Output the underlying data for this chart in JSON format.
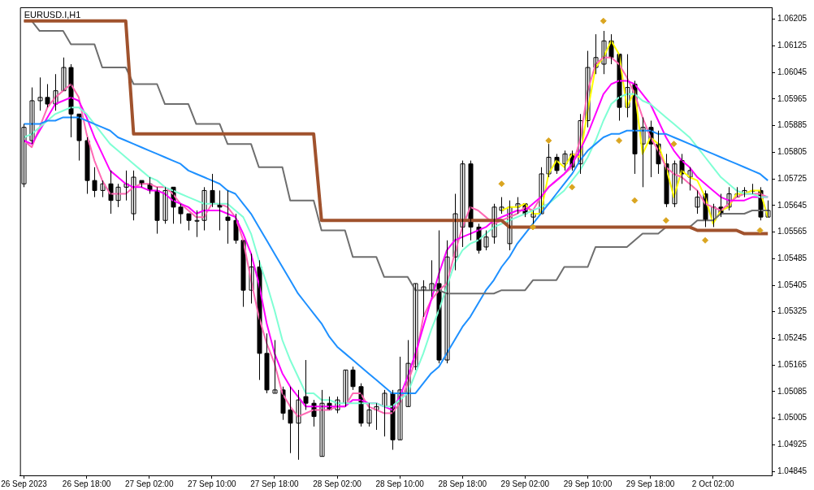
{
  "chart_data": {
    "type": "candlestick",
    "title": "EURUSD.I,H1",
    "categories": [
      "26 Sep 2023",
      null,
      null,
      null,
      null,
      null,
      null,
      null,
      "26 Sep 18:00",
      null,
      null,
      null,
      null,
      null,
      null,
      null,
      "27 Sep 02:00",
      null,
      null,
      null,
      null,
      null,
      null,
      null,
      "27 Sep 10:00",
      null,
      null,
      null,
      null,
      null,
      null,
      null,
      "27 Sep 18:00",
      null,
      null,
      null,
      null,
      null,
      null,
      null,
      "28 Sep 02:00",
      null,
      null,
      null,
      null,
      null,
      null,
      null,
      "28 Sep 10:00",
      null,
      null,
      null,
      null,
      null,
      null,
      null,
      "28 Sep 18:00",
      null,
      null,
      null,
      null,
      null,
      null,
      null,
      "29 Sep 02:00",
      null,
      null,
      null,
      null,
      null,
      null,
      null,
      "29 Sep 10:00",
      null,
      null,
      null,
      null,
      null,
      null,
      null,
      "29 Sep 18:00",
      null,
      null,
      null,
      null,
      null,
      null,
      null,
      "2 Oct 02:00",
      null,
      null,
      null,
      null,
      null,
      null,
      null
    ],
    "ohlc": [
      [
        1.0571,
        1.0589,
        1.057,
        1.0588
      ],
      [
        1.0584,
        1.06,
        1.0583,
        1.0596
      ],
      [
        1.0596,
        1.0603,
        1.0593,
        1.0597
      ],
      [
        1.0597,
        1.0601,
        1.0594,
        1.0595
      ],
      [
        1.0595,
        1.0604,
        1.0593,
        1.0599
      ],
      [
        1.0599,
        1.0609,
        1.0599,
        1.0606
      ],
      [
        1.0606,
        1.0607,
        1.0585,
        1.0592
      ],
      [
        1.0592,
        1.0592,
        1.0578,
        1.0584
      ],
      [
        1.0584,
        1.0585,
        1.0568,
        1.0572
      ],
      [
        1.0572,
        1.0576,
        1.0567,
        1.0569
      ],
      [
        1.0569,
        1.0572,
        1.0567,
        1.0571
      ],
      [
        1.0571,
        1.0575,
        1.0562,
        1.0566
      ],
      [
        1.0566,
        1.0571,
        1.0564,
        1.057
      ],
      [
        1.057,
        1.0575,
        1.0566,
        1.0571
      ],
      [
        1.0562,
        1.0575,
        1.056,
        1.0573
      ],
      [
        1.0572,
        1.0572,
        1.057,
        1.0571
      ],
      [
        1.0571,
        1.0573,
        1.0568,
        1.0569
      ],
      [
        1.0569,
        1.057,
        1.0556,
        1.056
      ],
      [
        1.056,
        1.057,
        1.0559,
        1.0569
      ],
      [
        1.057,
        1.057,
        1.0559,
        1.0564
      ],
      [
        1.0564,
        1.0565,
        1.0559,
        1.0562
      ],
      [
        1.0562,
        1.0562,
        1.0557,
        1.056
      ],
      [
        1.056,
        1.0563,
        1.0555,
        1.056
      ],
      [
        1.056,
        1.057,
        1.0557,
        1.0569
      ],
      [
        1.0569,
        1.0574,
        1.0564,
        1.0565
      ],
      [
        1.0565,
        1.0569,
        1.0557,
        1.0564
      ],
      [
        1.0561,
        1.0569,
        1.0553,
        1.056
      ],
      [
        1.056,
        1.0562,
        1.0553,
        1.0554
      ],
      [
        1.0554,
        1.0554,
        1.0534,
        1.0539
      ],
      [
        1.0539,
        1.055,
        1.0535,
        1.0546
      ],
      [
        1.0546,
        1.0548,
        1.0512,
        1.052
      ],
      [
        1.052,
        1.0526,
        1.0508,
        1.0509
      ],
      [
        1.0508,
        1.0524,
        1.0508,
        1.0509
      ],
      [
        1.0509,
        1.051,
        1.05,
        1.0502
      ],
      [
        1.0503,
        1.051,
        1.049,
        1.0499
      ],
      [
        1.0499,
        1.0509,
        1.0488,
        1.0506
      ],
      [
        1.0507,
        1.0518,
        1.0503,
        1.0505
      ],
      [
        1.0505,
        1.0506,
        1.0498,
        1.0501
      ],
      [
        1.0489,
        1.0509,
        1.0489,
        1.0505
      ],
      [
        1.0505,
        1.0507,
        1.0503,
        1.0503
      ],
      [
        1.0503,
        1.0507,
        1.0502,
        1.0506
      ],
      [
        1.0505,
        1.0515,
        1.0504,
        1.0515
      ],
      [
        1.0515,
        1.0516,
        1.0509,
        1.051
      ],
      [
        1.051,
        1.0511,
        1.0498,
        1.0499
      ],
      [
        1.0499,
        1.0505,
        1.0498,
        1.0503
      ],
      [
        1.0503,
        1.0505,
        1.0497,
        1.0504
      ],
      [
        1.0504,
        1.0509,
        1.0495,
        1.0508
      ],
      [
        1.0508,
        1.0509,
        1.0491,
        1.0494
      ],
      [
        1.0494,
        1.0519,
        1.0494,
        1.0509
      ],
      [
        1.0504,
        1.0524,
        1.0504,
        1.0517
      ],
      [
        1.0516,
        1.0541,
        1.0515,
        1.0541
      ],
      [
        1.0539,
        1.0542,
        1.0531,
        1.054
      ],
      [
        1.0539,
        1.0548,
        1.0537,
        1.0541
      ],
      [
        1.0541,
        1.0557,
        1.0517,
        1.0518
      ],
      [
        1.0518,
        1.0554,
        1.0517,
        1.0549
      ],
      [
        1.0549,
        1.0568,
        1.0545,
        1.0562
      ],
      [
        1.0558,
        1.0578,
        1.0552,
        1.0577
      ],
      [
        1.0577,
        1.0578,
        1.0554,
        1.0558
      ],
      [
        1.0558,
        1.0559,
        1.055,
        1.0551
      ],
      [
        1.0552,
        1.0557,
        1.0551,
        1.0555
      ],
      [
        1.0555,
        1.0565,
        1.0553,
        1.0564
      ],
      [
        1.0563,
        1.0567,
        1.0562,
        1.0564
      ],
      [
        1.0553,
        1.0566,
        1.0551,
        1.0564
      ],
      [
        1.0564,
        1.0567,
        1.0562,
        1.0565
      ],
      [
        1.0565,
        1.0565,
        1.0561,
        1.0562
      ],
      [
        1.0561,
        1.0563,
        1.0559,
        1.0562
      ],
      [
        1.0562,
        1.0576,
        1.0562,
        1.0574
      ],
      [
        1.0574,
        1.0583,
        1.0573,
        1.0579
      ],
      [
        1.0579,
        1.058,
        1.0574,
        1.0575
      ],
      [
        1.0577,
        1.0581,
        1.0575,
        1.058
      ],
      [
        1.058,
        1.0581,
        1.0575,
        1.0576
      ],
      [
        1.0577,
        1.0592,
        1.0574,
        1.059
      ],
      [
        1.059,
        1.0611,
        1.0588,
        1.0606
      ],
      [
        1.0606,
        1.0616,
        1.0604,
        1.0609
      ],
      [
        1.0607,
        1.0617,
        1.0604,
        1.0614
      ],
      [
        1.0614,
        1.0616,
        1.0607,
        1.0609
      ],
      [
        1.061,
        1.061,
        1.059,
        1.0594
      ],
      [
        1.0594,
        1.061,
        1.0591,
        1.06
      ],
      [
        1.0601,
        1.0602,
        1.0574,
        1.058
      ],
      [
        1.0583,
        1.0591,
        1.057,
        1.0588
      ],
      [
        1.0588,
        1.059,
        1.0573,
        1.0583
      ],
      [
        1.0583,
        1.0587,
        1.0574,
        1.0577
      ],
      [
        1.0577,
        1.058,
        1.0564,
        1.0565
      ],
      [
        1.0565,
        1.0578,
        1.0564,
        1.0577
      ],
      [
        1.0578,
        1.058,
        1.0571,
        1.0574
      ],
      [
        1.0573,
        1.0576,
        1.0569,
        1.0575
      ],
      [
        1.0564,
        1.0569,
        1.0562,
        1.0567
      ],
      [
        1.0568,
        1.0569,
        1.0558,
        1.056
      ],
      [
        1.056,
        1.0565,
        1.0558,
        1.0564
      ],
      [
        1.0564,
        1.0568,
        1.0561,
        1.0562
      ],
      [
        1.0564,
        1.057,
        1.0563,
        1.0568
      ],
      [
        1.0567,
        1.057,
        1.0567,
        1.0568
      ],
      [
        1.0568,
        1.057,
        1.0567,
        1.0569
      ],
      [
        1.0569,
        1.0571,
        1.0568,
        1.0569
      ],
      [
        1.0569,
        1.057,
        1.056,
        1.0561
      ],
      [
        1.0561,
        1.0566,
        1.0561,
        1.0563
      ]
    ],
    "ylim": [
      1.04833,
      1.06241
    ],
    "yticks": [
      1.04845,
      1.04925,
      1.05005,
      1.05085,
      1.05165,
      1.05245,
      1.05325,
      1.05405,
      1.05485,
      1.05565,
      1.05645,
      1.05725,
      1.05805,
      1.05885,
      1.05965,
      1.06045,
      1.06125,
      1.06205
    ],
    "series": [
      {
        "type": "line",
        "color": "#a0522d",
        "values": [
          1.062,
          1.062,
          1.062,
          1.062,
          1.062,
          1.062,
          1.062,
          1.062,
          1.062,
          1.062,
          1.062,
          1.062,
          1.062,
          1.062,
          1.0586,
          1.0586,
          1.0586,
          1.0586,
          1.0586,
          1.0586,
          1.0586,
          1.0586,
          1.0586,
          1.0586,
          1.0586,
          1.0586,
          1.0586,
          1.0586,
          1.0586,
          1.0586,
          1.0586,
          1.0586,
          1.0586,
          1.0586,
          1.0586,
          1.0586,
          1.0586,
          1.0586,
          1.056,
          1.056,
          1.056,
          1.056,
          1.056,
          1.056,
          1.056,
          1.056,
          1.056,
          1.056,
          1.056,
          1.056,
          1.056,
          1.056,
          1.056,
          1.056,
          1.056,
          1.056,
          1.056,
          1.056,
          1.056,
          1.056,
          1.056,
          1.056,
          1.0558,
          1.0558,
          1.0558,
          1.0558,
          1.0558,
          1.0558,
          1.0558,
          1.0558,
          1.0558,
          1.0558,
          1.0558,
          1.0558,
          1.0558,
          1.0558,
          1.0558,
          1.0558,
          1.0558,
          1.0558,
          1.0558,
          1.0558,
          1.0558,
          1.0558,
          1.0558,
          1.0558,
          1.0557,
          1.0557,
          1.0557,
          1.0557,
          1.0557,
          1.0557,
          1.0556,
          1.0556,
          1.0556,
          1.0556
        ]
      },
      {
        "type": "line",
        "color": "#6e6e6e",
        "values": [
          1.062,
          1.062,
          1.0617,
          1.0617,
          1.0617,
          1.0617,
          1.0613,
          1.0613,
          1.0613,
          1.0613,
          1.0606,
          1.0606,
          1.0606,
          1.0606,
          1.0601,
          1.0601,
          1.0601,
          1.0601,
          1.0595,
          1.0595,
          1.0595,
          1.0595,
          1.0589,
          1.0589,
          1.0589,
          1.0589,
          1.0583,
          1.0583,
          1.0583,
          1.0583,
          1.0576,
          1.0576,
          1.0576,
          1.0576,
          1.0566,
          1.0566,
          1.0566,
          1.0566,
          1.0557,
          1.0557,
          1.0557,
          1.0557,
          1.0549,
          1.0549,
          1.0549,
          1.0549,
          1.0543,
          1.0543,
          1.0543,
          1.0543,
          1.0539,
          1.0539,
          1.0539,
          1.0539,
          1.0538,
          1.0538,
          1.0538,
          1.0538,
          1.0538,
          1.0538,
          1.0538,
          1.0539,
          1.0539,
          1.0539,
          1.0539,
          1.0542,
          1.0542,
          1.0542,
          1.0542,
          1.0546,
          1.0546,
          1.0546,
          1.0546,
          1.0552,
          1.0552,
          1.0552,
          1.0552,
          1.0552,
          1.0554,
          1.0556,
          1.0556,
          1.0556,
          1.0558,
          1.0558,
          1.0558,
          1.0558,
          1.056,
          1.056,
          1.056,
          1.0562,
          1.0562,
          1.0562,
          1.0562,
          1.0563,
          1.0563,
          1.0563
        ]
      },
      {
        "type": "line",
        "color": "#1e90ff",
        "values": [
          1.0589,
          1.0589,
          1.0589,
          1.059,
          1.059,
          1.0591,
          1.0591,
          1.0591,
          1.059,
          1.0589,
          1.0588,
          1.0587,
          1.0585,
          1.0584,
          1.0583,
          1.0582,
          1.0581,
          1.058,
          1.0579,
          1.0578,
          1.0577,
          1.0575,
          1.0574,
          1.0573,
          1.0572,
          1.0571,
          1.0569,
          1.0568,
          1.0565,
          1.0562,
          1.0558,
          1.0554,
          1.055,
          1.0546,
          1.0542,
          1.0538,
          1.0535,
          1.0532,
          1.0529,
          1.0525,
          1.0522,
          1.052,
          1.0518,
          1.0516,
          1.0514,
          1.0512,
          1.051,
          1.0508,
          1.0508,
          1.0508,
          1.0508,
          1.0511,
          1.0514,
          1.0516,
          1.052,
          1.0524,
          1.0528,
          1.0531,
          1.0535,
          1.0539,
          1.0542,
          1.0546,
          1.0549,
          1.0553,
          1.0556,
          1.0559,
          1.0562,
          1.0565,
          1.0568,
          1.0571,
          1.0574,
          1.0578,
          1.0581,
          1.0583,
          1.0585,
          1.0586,
          1.0586,
          1.0587,
          1.0587,
          1.0587,
          1.0587,
          1.0586,
          1.0586,
          1.0585,
          1.0584,
          1.0583,
          1.0582,
          1.0581,
          1.058,
          1.0579,
          1.0578,
          1.0577,
          1.0576,
          1.0575,
          1.0574,
          1.0572
        ]
      },
      {
        "type": "line",
        "color": "#7fffd4",
        "values": [
          1.0585,
          1.0586,
          1.0588,
          1.059,
          1.0592,
          1.0593,
          1.0594,
          1.0594,
          1.0592,
          1.0589,
          1.0586,
          1.0583,
          1.0581,
          1.0579,
          1.0577,
          1.0575,
          1.0573,
          1.0572,
          1.057,
          1.0569,
          1.0568,
          1.0567,
          1.0566,
          1.0565,
          1.0565,
          1.0565,
          1.0565,
          1.0563,
          1.0561,
          1.0556,
          1.0548,
          1.0541,
          1.0533,
          1.0524,
          1.0518,
          1.0513,
          1.0508,
          1.0508,
          1.0506,
          1.0506,
          1.0505,
          1.0505,
          1.0505,
          1.0505,
          1.0505,
          1.0505,
          1.0504,
          1.0504,
          1.0506,
          1.0508,
          1.0514,
          1.052,
          1.0527,
          1.0533,
          1.054,
          1.0547,
          1.0551,
          1.0553,
          1.0554,
          1.0556,
          1.0558,
          1.0559,
          1.056,
          1.0561,
          1.0562,
          1.0563,
          1.0564,
          1.0565,
          1.0567,
          1.0569,
          1.0572,
          1.0575,
          1.0579,
          1.0584,
          1.059,
          1.0595,
          1.0597,
          1.0598,
          1.0598,
          1.0596,
          1.0595,
          1.0593,
          1.0591,
          1.0589,
          1.0587,
          1.0585,
          1.0582,
          1.0579,
          1.0576,
          1.0573,
          1.0571,
          1.0569,
          1.0568,
          1.0568,
          1.0567,
          1.0567
        ]
      },
      {
        "type": "line",
        "color": "#ff00ff",
        "values": [
          1.0584,
          1.0583,
          1.0587,
          1.0591,
          1.0595,
          1.0596,
          1.0597,
          1.0596,
          1.0591,
          1.0585,
          1.058,
          1.0575,
          1.0573,
          1.0571,
          1.057,
          1.057,
          1.0569,
          1.0569,
          1.0568,
          1.0566,
          1.0565,
          1.0564,
          1.0562,
          1.0563,
          1.0563,
          1.0563,
          1.0562,
          1.0561,
          1.0556,
          1.055,
          1.0541,
          1.0529,
          1.052,
          1.0514,
          1.051,
          1.0507,
          1.0504,
          1.0504,
          1.0504,
          1.0504,
          1.0504,
          1.0504,
          1.0506,
          1.0506,
          1.0505,
          1.0505,
          1.0504,
          1.0503,
          1.0507,
          1.0513,
          1.052,
          1.0528,
          1.0536,
          1.0544,
          1.0551,
          1.0554,
          1.0555,
          1.0556,
          1.0557,
          1.0558,
          1.056,
          1.0561,
          1.0562,
          1.0563,
          1.0563,
          1.0565,
          1.0567,
          1.057,
          1.0572,
          1.0574,
          1.0577,
          1.0581,
          1.0586,
          1.0592,
          1.0598,
          1.0601,
          1.0602,
          1.0602,
          1.0601,
          1.0598,
          1.0595,
          1.059,
          1.0585,
          1.0581,
          1.0578,
          1.0576,
          1.0573,
          1.0571,
          1.0569,
          1.0567,
          1.0566,
          1.0566,
          1.0566,
          1.0567,
          1.0567,
          1.0567
        ]
      },
      {
        "type": "line",
        "color": "#ff69b4",
        "values": [
          1.0584,
          1.0582,
          1.0588,
          1.0594,
          1.0597,
          1.0599,
          1.0601,
          1.0597,
          1.0586,
          1.0578,
          1.0572,
          1.0568,
          1.0568,
          1.0568,
          1.057,
          1.0571,
          1.0571,
          1.057,
          1.057,
          1.0568,
          1.0565,
          1.0563,
          1.0561,
          1.0561,
          1.0565,
          1.0565,
          1.0564,
          1.0561,
          1.0554,
          1.0542,
          1.0531,
          1.0523,
          1.0517,
          1.0508,
          1.0504,
          1.0501,
          1.0502,
          1.0503,
          1.0503,
          1.0503,
          1.0504,
          1.0504,
          1.0508,
          1.0508,
          1.0504,
          1.0503,
          1.0502,
          1.0502,
          1.0505,
          1.0511,
          1.0518,
          1.0531,
          1.0536,
          1.0539,
          1.0541,
          1.055,
          1.0558,
          1.0564,
          1.0563,
          1.0561,
          1.0559,
          1.056,
          1.0561,
          1.0562,
          1.0564,
          1.0563,
          1.0567,
          1.057,
          1.0572,
          1.0574,
          1.0576,
          1.0584,
          1.0599,
          1.0607,
          1.0609,
          1.0609,
          1.0607,
          1.0603,
          1.0598,
          1.0591,
          1.0585,
          1.0581,
          1.0576,
          1.0574,
          1.0573,
          1.0571,
          1.0569,
          1.0565,
          1.0564,
          1.0563,
          1.0565,
          1.0567,
          1.0568,
          1.0568,
          1.0568,
          1.0567
        ]
      },
      {
        "type": "line",
        "color": "#ffff00",
        "values": [
          null,
          null,
          null,
          null,
          null,
          null,
          null,
          null,
          null,
          null,
          null,
          null,
          null,
          null,
          null,
          null,
          null,
          null,
          null,
          null,
          null,
          null,
          null,
          null,
          null,
          null,
          null,
          null,
          null,
          null,
          null,
          null,
          null,
          null,
          null,
          null,
          null,
          null,
          null,
          null,
          null,
          null,
          null,
          null,
          null,
          null,
          null,
          null,
          null,
          null,
          null,
          null,
          null,
          null,
          null,
          null,
          null,
          null,
          null,
          null,
          null,
          1.0563,
          1.0564,
          1.0564,
          1.0565,
          1.0562,
          1.0562,
          1.0574,
          1.0578,
          1.0576,
          1.058,
          1.0579,
          1.0593,
          1.0606,
          1.0609,
          1.0614,
          1.061,
          1.0594,
          1.0599,
          1.058,
          1.0585,
          1.0583,
          1.0576,
          1.0567,
          1.0575,
          1.0573,
          1.0572,
          1.0567,
          1.0559,
          1.0563,
          1.0564,
          1.0568,
          1.0568,
          1.0569,
          1.0569,
          1.0561
        ]
      },
      {
        "type": "scatter",
        "color": "#daa520",
        "marker": "diamond",
        "values": [
          null,
          null,
          null,
          null,
          null,
          null,
          null,
          null,
          null,
          null,
          null,
          null,
          null,
          null,
          null,
          null,
          null,
          null,
          null,
          null,
          null,
          null,
          null,
          null,
          null,
          null,
          null,
          null,
          null,
          null,
          null,
          null,
          null,
          null,
          null,
          null,
          null,
          null,
          null,
          null,
          null,
          null,
          null,
          null,
          null,
          null,
          null,
          null,
          null,
          null,
          null,
          null,
          null,
          null,
          null,
          null,
          null,
          null,
          null,
          null,
          null,
          1.0571,
          null,
          null,
          null,
          1.0558,
          null,
          1.0584,
          null,
          null,
          1.057,
          null,
          null,
          null,
          1.062,
          null,
          1.0584,
          null,
          1.0566,
          null,
          null,
          null,
          1.056,
          1.0583,
          null,
          null,
          null,
          1.0554,
          null,
          null,
          null,
          null,
          null,
          null,
          1.0557,
          null
        ]
      }
    ]
  }
}
